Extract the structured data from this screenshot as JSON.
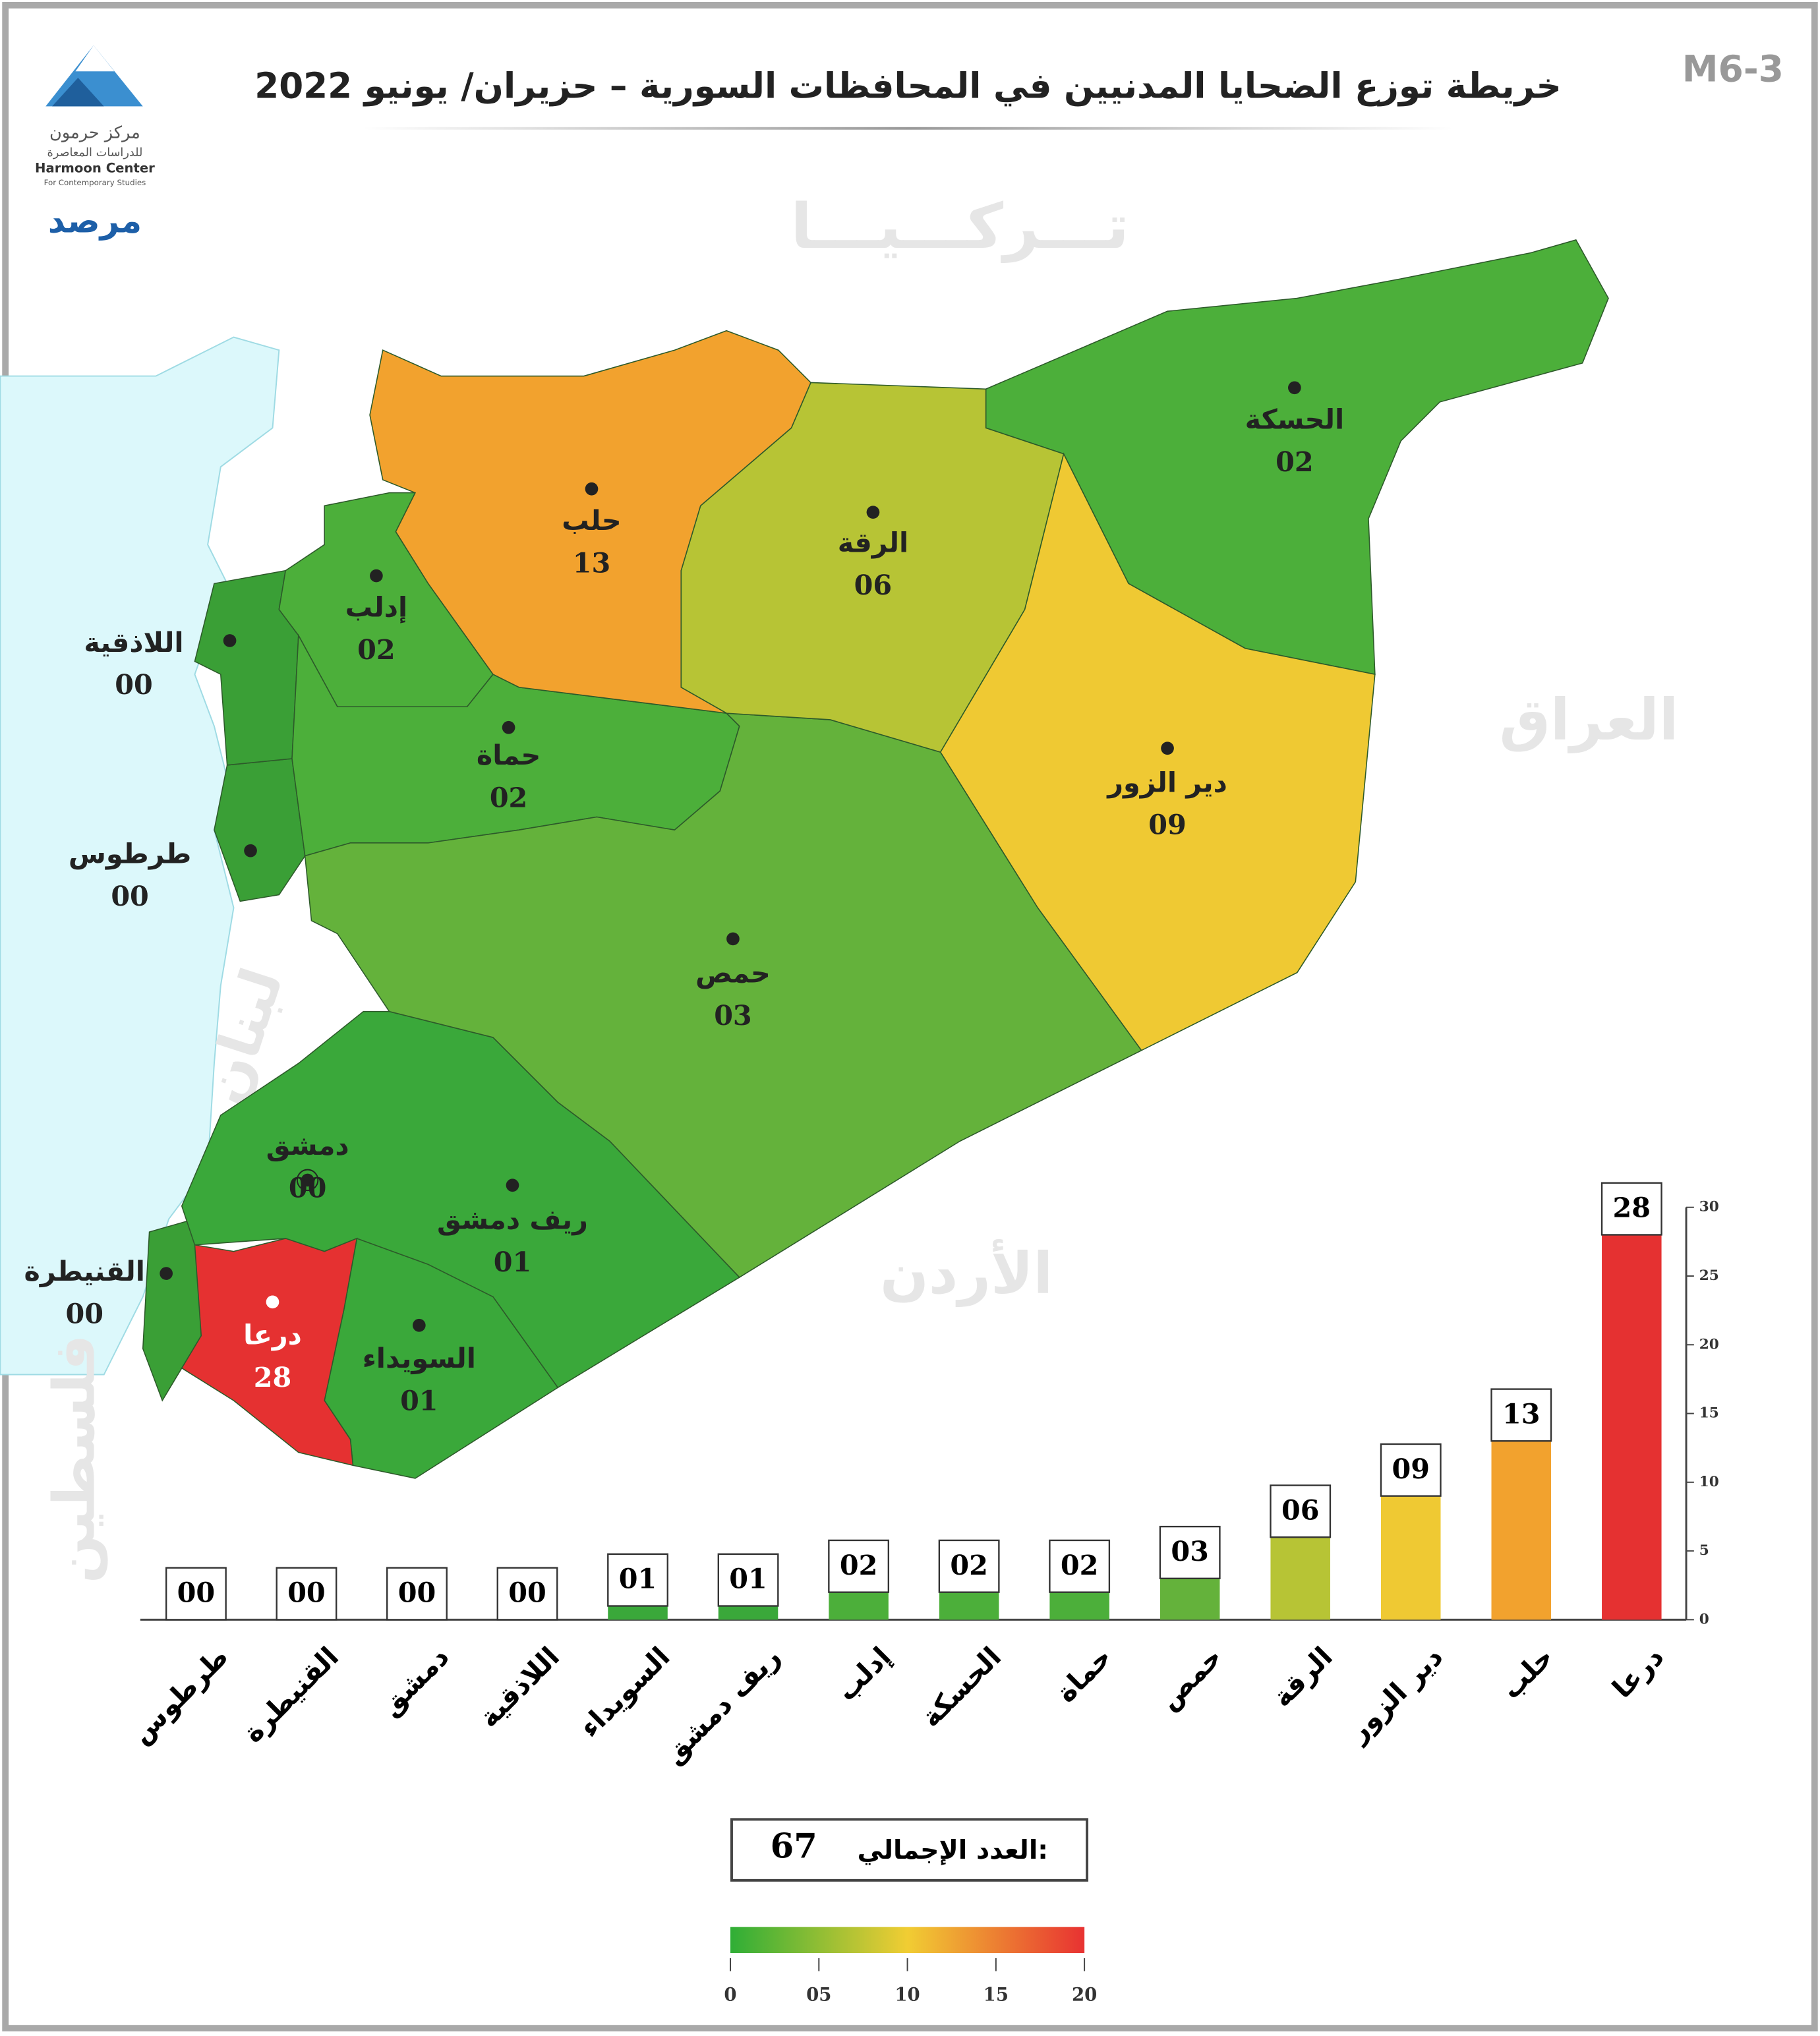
{
  "header": {
    "title": "خريطة توزع الضحايا المدنيين في المحافظات السورية – حزيران/ يونيو 2022",
    "code": "M6-3"
  },
  "logo": {
    "name_ar": "مركز حرمون",
    "sub_ar": "للدراسات المعاصرة",
    "name_en": "Harmoon Center",
    "sub_en": "For Contemporary Studies",
    "observatory": "مرصد"
  },
  "countries": {
    "turkey": "تـــركـــيـــا",
    "iraq": "العراق",
    "lebanon": "لبنان",
    "jordan": "الأردن",
    "palestine": "فلسطين"
  },
  "chart_data": {
    "type": "bar",
    "categories": [
      "طرطوس",
      "القنيطرة",
      "دمشق",
      "اللاذقية",
      "السويداء",
      "ريف دمشق",
      "إدلب",
      "الحسكة",
      "حماة",
      "حمص",
      "الرقة",
      "دير الزور",
      "حلب",
      "درعا"
    ],
    "values": [
      0,
      0,
      0,
      0,
      1,
      1,
      2,
      2,
      2,
      3,
      6,
      9,
      13,
      28
    ],
    "value_labels": [
      "00",
      "00",
      "00",
      "00",
      "01",
      "01",
      "02",
      "02",
      "02",
      "03",
      "06",
      "09",
      "13",
      "28"
    ],
    "colors": [
      "#3a9f36",
      "#3a9f36",
      "#3aa536",
      "#3a9f36",
      "#3aa83a",
      "#3aa83a",
      "#4caf3a",
      "#4caf3a",
      "#4caf3a",
      "#64b23b",
      "#b7c435",
      "#efc933",
      "#f2a22e",
      "#e53131"
    ],
    "ylim": [
      0,
      30
    ],
    "yticks": [
      0,
      5,
      10,
      15,
      20,
      25,
      30
    ]
  },
  "color_scale": {
    "range": [
      0,
      20
    ],
    "colors": [
      "#2fae36",
      "#f1cd33",
      "#e83232"
    ],
    "ticks": [
      0,
      {
        "value": 5,
        "label": "05"
      },
      10,
      15,
      20
    ]
  },
  "total": {
    "label": "العدد الإجمالي:",
    "value": 67
  }
}
